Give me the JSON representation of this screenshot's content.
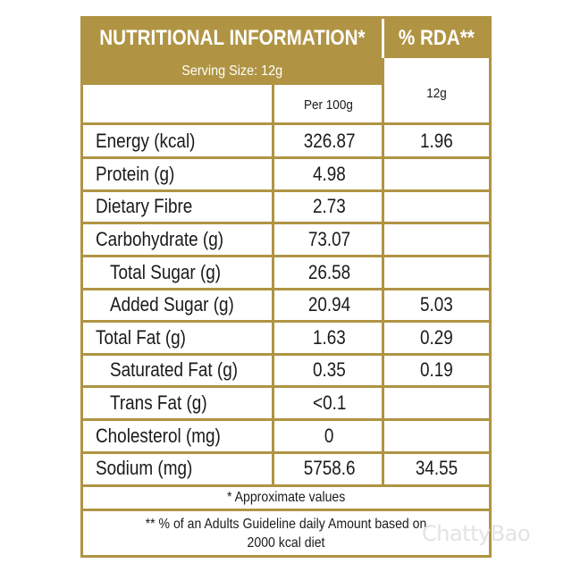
{
  "header": {
    "title": "NUTRITIONAL INFORMATION*",
    "rda": "% RDA**"
  },
  "serving": {
    "label": "Serving Size:  12g",
    "per100": "Per 100g",
    "rda_serving": "12g"
  },
  "rows": [
    {
      "name": "Energy (kcal)",
      "per100": "326.87",
      "rda": "1.96",
      "indent": false
    },
    {
      "name": "Protein (g)",
      "per100": "4.98",
      "rda": "",
      "indent": false
    },
    {
      "name": "Dietary Fibre",
      "per100": "2.73",
      "rda": "",
      "indent": false
    },
    {
      "name": "Carbohydrate (g)",
      "per100": "73.07",
      "rda": "",
      "indent": false
    },
    {
      "name": "Total Sugar (g)",
      "per100": "26.58",
      "rda": "",
      "indent": true
    },
    {
      "name": "Added Sugar (g)",
      "per100": "20.94",
      "rda": "5.03",
      "indent": true
    },
    {
      "name": "Total Fat (g)",
      "per100": "1.63",
      "rda": "0.29",
      "indent": false
    },
    {
      "name": "Saturated Fat (g)",
      "per100": "0.35",
      "rda": "0.19",
      "indent": true
    },
    {
      "name": "Trans Fat (g)",
      "per100": "<0.1",
      "rda": "",
      "indent": true
    },
    {
      "name": "Cholesterol (mg)",
      "per100": "0",
      "rda": "",
      "indent": false
    },
    {
      "name": "Sodium (mg)",
      "per100": "5758.6",
      "rda": "34.55",
      "indent": false
    }
  ],
  "notes": {
    "approx": "* Approximate values",
    "guideline": "** % of an Adults Guideline daily Amount based on 2000 kcal diet"
  },
  "watermark": "ChattyBao",
  "colors": {
    "accent": "#b09443",
    "text": "#1a1a1a",
    "background": "#ffffff"
  }
}
